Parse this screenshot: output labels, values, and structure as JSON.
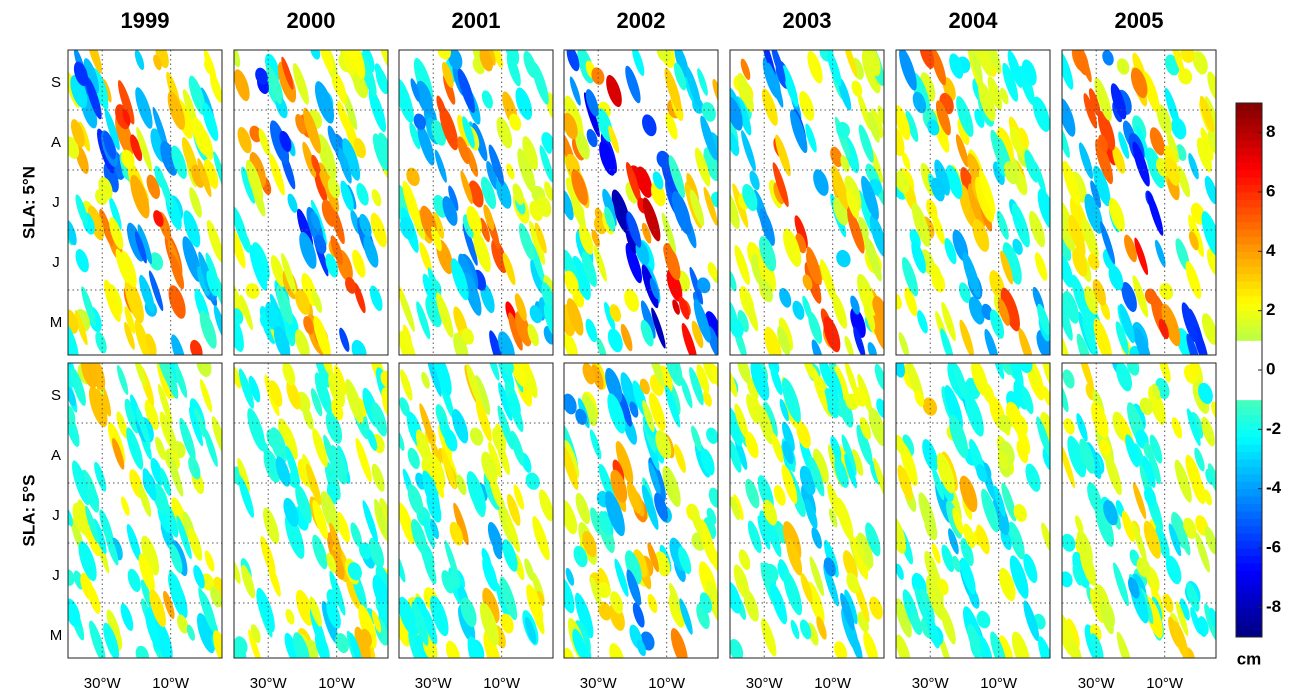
{
  "chart_data": {
    "type": "hovmoller",
    "columns": [
      "1999",
      "2000",
      "2001",
      "2002",
      "2003",
      "2004",
      "2005"
    ],
    "rows": [
      "SLA: 5°N",
      "SLA: 5°S"
    ],
    "categories": [
      "S",
      "A",
      "J",
      "J",
      "M"
    ],
    "xlim": [
      -40,
      5
    ],
    "xticks": [
      {
        "value": -30,
        "label": "30°W"
      },
      {
        "value": -10,
        "label": "10°W"
      }
    ],
    "colorbar": {
      "lim": [
        -9,
        9
      ],
      "ticks": [
        8,
        6,
        4,
        2,
        0,
        -2,
        -4,
        -6,
        -8
      ],
      "label": "cm"
    }
  }
}
